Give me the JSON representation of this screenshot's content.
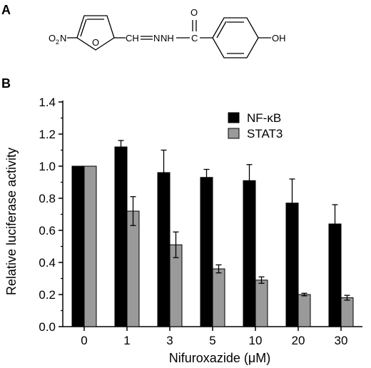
{
  "panels": {
    "a_label": "A",
    "b_label": "B"
  },
  "structure": {
    "nitro_label": "O",
    "nitro_sub": "2",
    "nitro_N": "N",
    "ring_oxygen": "O",
    "linker": "CH═N─NH─C",
    "hydrazone_text_1": "CH",
    "hydrazone_text_2": "N",
    "hydrazone_text_3": "NH",
    "carbonyl_c": "C",
    "carbonyl_o": "O",
    "hydroxyl": "OH"
  },
  "colors": {
    "nfkb": "#000000",
    "stat3": "#9a9a9a",
    "axis": "#000000"
  },
  "chart_data": {
    "type": "bar",
    "categories": [
      "0",
      "1",
      "3",
      "5",
      "10",
      "20",
      "30"
    ],
    "series": [
      {
        "name": "NF-κB",
        "values": [
          1.0,
          1.12,
          0.96,
          0.93,
          0.91,
          0.77,
          0.64
        ],
        "errors": [
          0.0,
          0.04,
          0.14,
          0.05,
          0.1,
          0.15,
          0.12
        ]
      },
      {
        "name": "STAT3",
        "values": [
          1.0,
          0.72,
          0.51,
          0.36,
          0.29,
          0.2,
          0.18
        ],
        "errors": [
          0.0,
          0.09,
          0.08,
          0.025,
          0.02,
          0.008,
          0.015
        ]
      }
    ],
    "xlabel": "Nifuroxazide (μM)",
    "ylabel": "Relative luciferase activity",
    "ylim": [
      0.0,
      1.4
    ],
    "yticks": [
      "0.0",
      "0.2",
      "0.4",
      "0.6",
      "0.8",
      "1.0",
      "1.2",
      "1.4"
    ],
    "ytick_values": [
      0.0,
      0.2,
      0.4,
      0.6,
      0.8,
      1.0,
      1.2,
      1.4
    ],
    "legend_position": "top-right",
    "grid": false
  }
}
